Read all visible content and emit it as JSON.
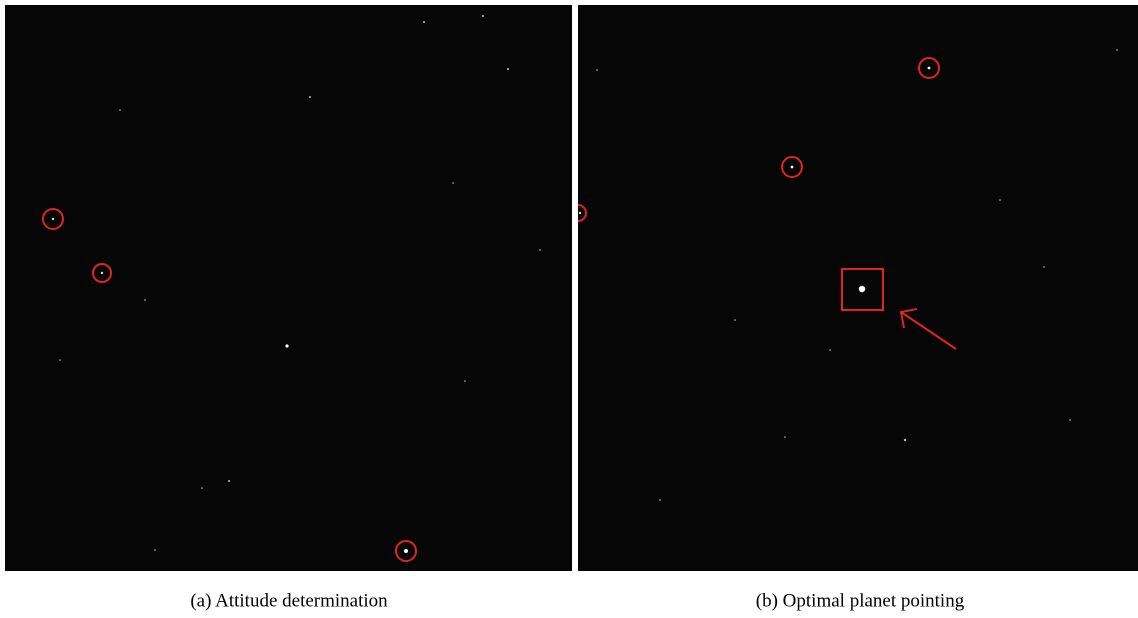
{
  "figure": {
    "subfigures": [
      {
        "caption": "(a) Attitude determination"
      },
      {
        "caption": "(b) Optimal planet pointing"
      }
    ]
  }
}
